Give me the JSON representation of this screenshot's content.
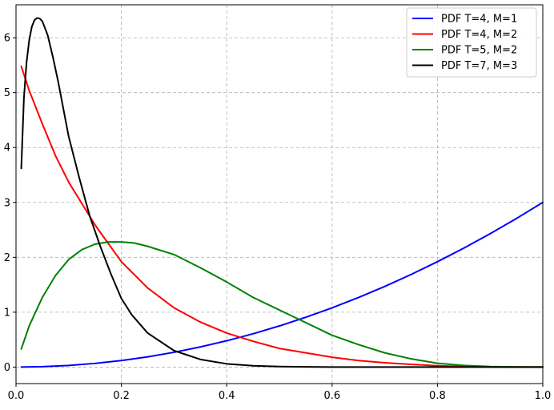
{
  "chart_data": {
    "type": "line",
    "title": "",
    "xlabel": "",
    "ylabel": "",
    "xlim": [
      0.0,
      1.0
    ],
    "ylim": [
      -0.3,
      6.6
    ],
    "x_ticks": [
      0.0,
      0.2,
      0.4,
      0.6,
      0.8,
      1.0
    ],
    "x_tick_labels": [
      "0.0",
      "0.2",
      "0.4",
      "0.6",
      "0.8",
      "1.0"
    ],
    "y_ticks": [
      0,
      1,
      2,
      3,
      4,
      5,
      6
    ],
    "y_tick_labels": [
      "0",
      "1",
      "2",
      "3",
      "4",
      "5",
      "6"
    ],
    "grid": true,
    "legend_position": "top-right",
    "series": [
      {
        "name": "PDF T=4, M=1",
        "color": "#0000ff",
        "x": [
          0.01,
          0.05,
          0.1,
          0.15,
          0.2,
          0.25,
          0.3,
          0.35,
          0.4,
          0.45,
          0.5,
          0.55,
          0.6,
          0.65,
          0.7,
          0.75,
          0.8,
          0.85,
          0.9,
          0.95,
          1.0
        ],
        "y": [
          0.0003,
          0.0075,
          0.03,
          0.0675,
          0.12,
          0.1875,
          0.27,
          0.3675,
          0.48,
          0.6075,
          0.75,
          0.9075,
          1.08,
          1.2675,
          1.47,
          1.6875,
          1.92,
          2.1675,
          2.43,
          2.7075,
          3.0
        ]
      },
      {
        "name": "PDF T=4, M=2",
        "color": "#ff0000",
        "x": [
          0.01,
          0.025,
          0.05,
          0.075,
          0.1,
          0.15,
          0.2,
          0.25,
          0.3,
          0.35,
          0.4,
          0.45,
          0.5,
          0.55,
          0.6,
          0.65,
          0.7,
          0.75,
          0.8,
          0.85,
          0.9,
          0.95,
          1.0
        ],
        "y": [
          5.48,
          5.04,
          4.43,
          3.85,
          3.37,
          2.59,
          1.92,
          1.44,
          1.08,
          0.82,
          0.62,
          0.47,
          0.34,
          0.26,
          0.18,
          0.12,
          0.08,
          0.05,
          0.025,
          0.01,
          0.004,
          0.001,
          0.0
        ]
      },
      {
        "name": "PDF T=5, M=2",
        "color": "#008000",
        "x": [
          0.01,
          0.025,
          0.05,
          0.075,
          0.1,
          0.125,
          0.15,
          0.175,
          0.2,
          0.225,
          0.25,
          0.3,
          0.35,
          0.4,
          0.45,
          0.5,
          0.55,
          0.6,
          0.65,
          0.7,
          0.75,
          0.8,
          0.85,
          0.9,
          0.95,
          1.0
        ],
        "y": [
          0.33,
          0.75,
          1.27,
          1.67,
          1.96,
          2.14,
          2.24,
          2.28,
          2.28,
          2.26,
          2.2,
          2.05,
          1.81,
          1.55,
          1.27,
          1.04,
          0.81,
          0.58,
          0.41,
          0.26,
          0.15,
          0.07,
          0.03,
          0.01,
          0.002,
          0.0
        ]
      },
      {
        "name": "PDF T=7, M=3",
        "color": "#000000",
        "x": [
          0.01,
          0.015,
          0.02,
          0.025,
          0.03,
          0.035,
          0.04,
          0.045,
          0.05,
          0.06,
          0.07,
          0.08,
          0.1,
          0.12,
          0.14,
          0.16,
          0.18,
          0.2,
          0.22,
          0.25,
          0.3,
          0.35,
          0.4,
          0.45,
          0.5,
          0.55,
          0.6,
          0.7,
          0.8,
          0.9,
          1.0
        ],
        "y": [
          3.62,
          4.9,
          5.55,
          5.95,
          6.2,
          6.32,
          6.36,
          6.35,
          6.3,
          6.05,
          5.65,
          5.2,
          4.2,
          3.45,
          2.75,
          2.2,
          1.7,
          1.25,
          0.95,
          0.62,
          0.3,
          0.14,
          0.06,
          0.025,
          0.01,
          0.004,
          0.001,
          0.0,
          0.0,
          0.0,
          0.0
        ]
      }
    ]
  }
}
